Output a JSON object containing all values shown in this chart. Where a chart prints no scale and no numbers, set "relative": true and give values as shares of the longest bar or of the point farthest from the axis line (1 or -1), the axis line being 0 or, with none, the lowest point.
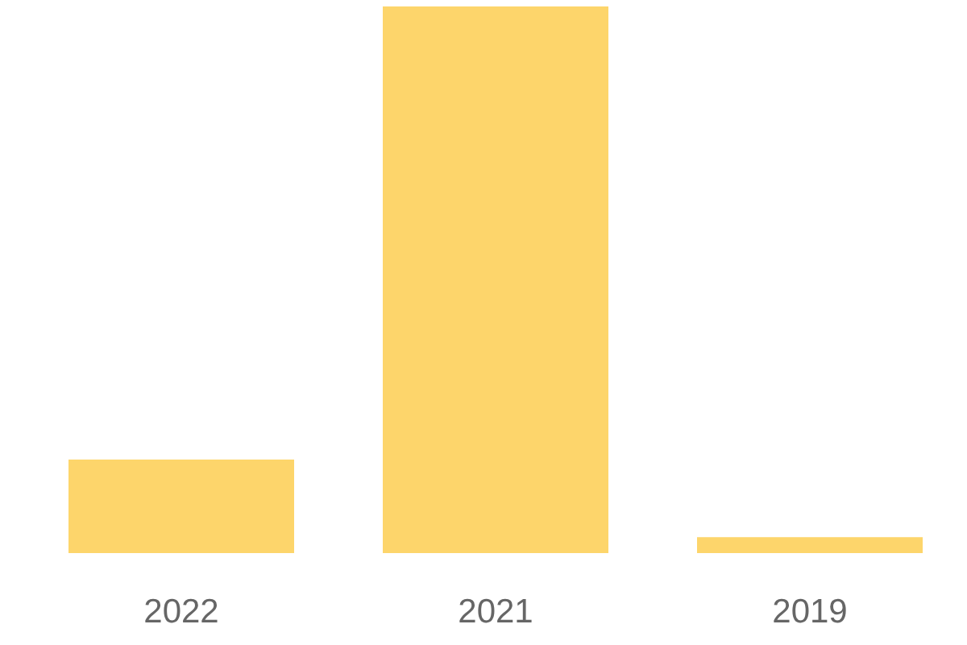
{
  "chart_data": {
    "type": "bar",
    "categories": [
      "2022",
      "2021",
      "2019"
    ],
    "values": [
      0.171,
      1,
      0.029
    ],
    "color": "#fdd56b",
    "relative": true
  }
}
